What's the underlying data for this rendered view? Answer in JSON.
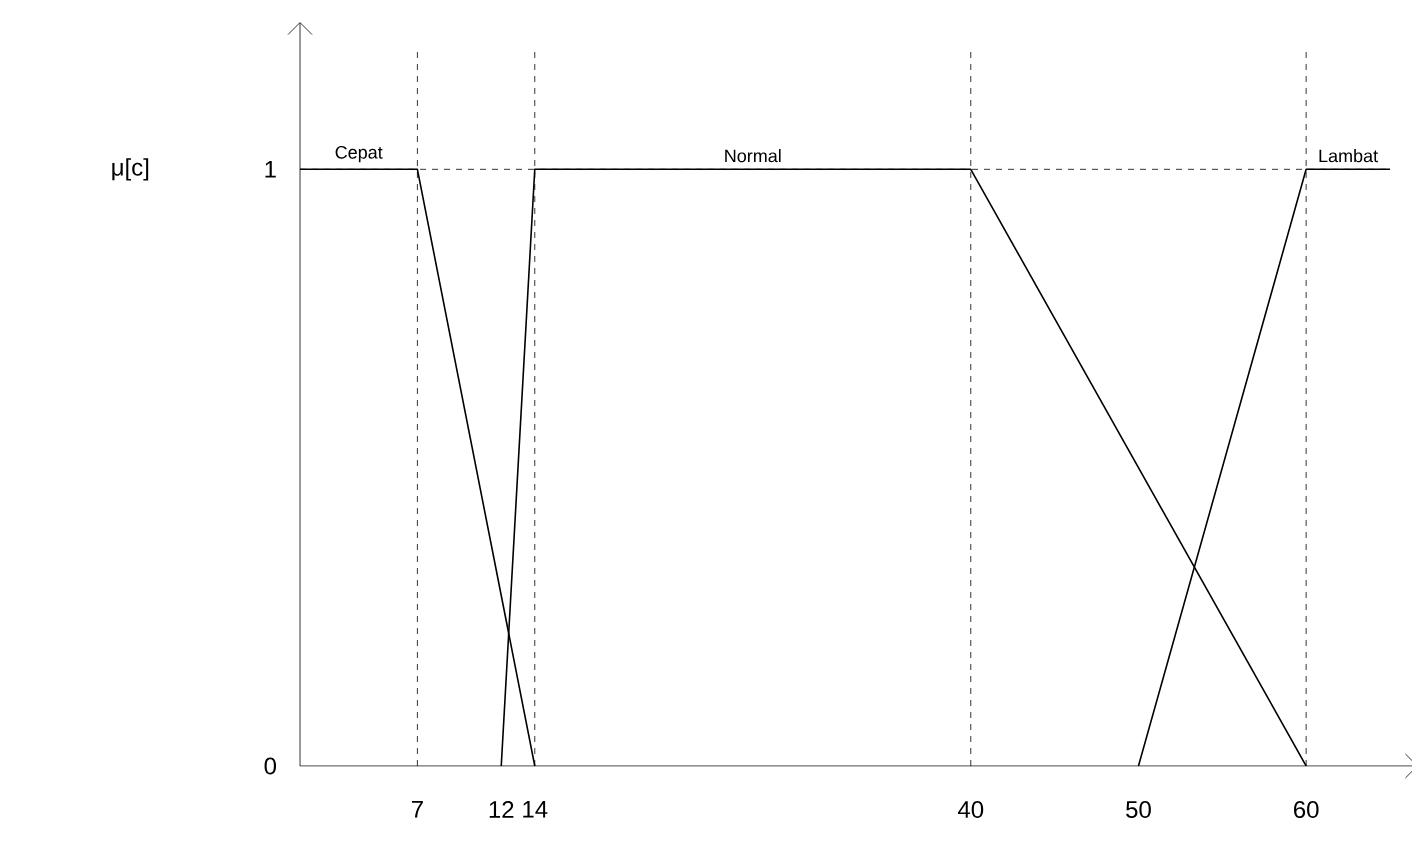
{
  "chart_data": {
    "type": "line",
    "ylabel": "μ[c]",
    "xlim": [
      0,
      65
    ],
    "ylim": [
      0,
      1.2
    ],
    "xticks": [
      7,
      12,
      14,
      40,
      50,
      60
    ],
    "yticks": [
      0,
      1
    ],
    "series": [
      {
        "name": "Cepat",
        "color": "#000000",
        "x": [
          0,
          7,
          14
        ],
        "values": [
          1,
          1,
          0
        ]
      },
      {
        "name": "Normal",
        "color": "#000000",
        "x": [
          12,
          14,
          40,
          60
        ],
        "values": [
          0,
          1,
          1,
          0
        ]
      },
      {
        "name": "Lambat",
        "color": "#000000",
        "x": [
          50,
          60,
          65
        ],
        "values": [
          0,
          1,
          1
        ]
      }
    ],
    "ref_lines": [
      {
        "axis": "x",
        "value": 7,
        "line_style": "dashed",
        "color": "#000000"
      },
      {
        "axis": "x",
        "value": 14,
        "line_style": "dashed",
        "color": "#000000"
      },
      {
        "axis": "x",
        "value": 40,
        "line_style": "dashed",
        "color": "#000000"
      },
      {
        "axis": "x",
        "value": 60,
        "line_style": "dashed",
        "color": "#000000"
      },
      {
        "axis": "y",
        "value": 1,
        "line_style": "dashed",
        "color": "#000000"
      }
    ]
  }
}
